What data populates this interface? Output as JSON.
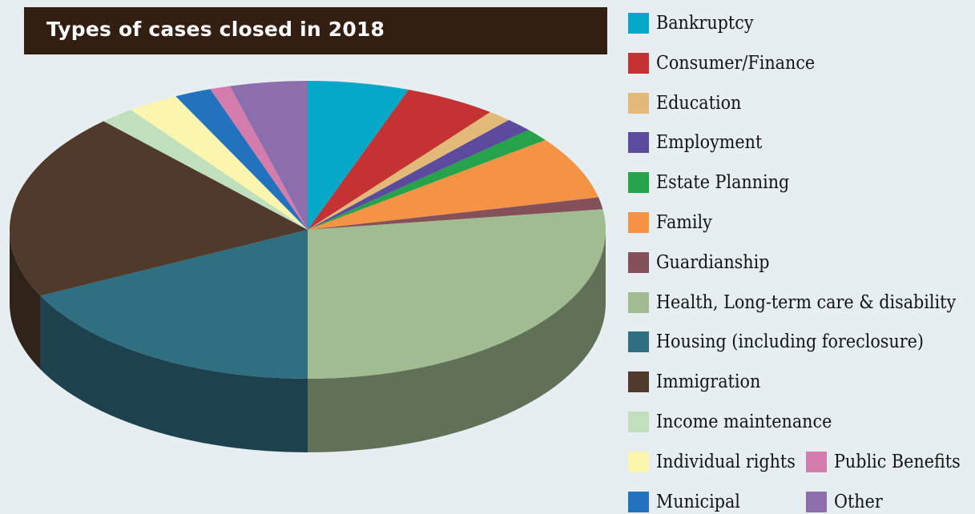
{
  "chart_data": {
    "type": "pie",
    "title": "Types of cases closed in 2018",
    "slices": [
      {
        "label": "Bankruptcy",
        "value": 5.5,
        "color": "#05a9c7"
      },
      {
        "label": "Consumer/Finance",
        "value": 5.0,
        "color": "#c43234"
      },
      {
        "label": "Education",
        "value": 1.3,
        "color": "#e2b978"
      },
      {
        "label": "Employment",
        "value": 1.5,
        "color": "#5c4a9f"
      },
      {
        "label": "Estate Planning",
        "value": 1.4,
        "color": "#26a34a"
      },
      {
        "label": "Family",
        "value": 6.8,
        "color": "#f59345"
      },
      {
        "label": "Guardianship",
        "value": 1.3,
        "color": "#84505a"
      },
      {
        "label": "Health, Long-term care & disability",
        "value": 27.2,
        "color": "#a2bc92"
      },
      {
        "label": "Housing (including foreclosure)",
        "value": 17.7,
        "color": "#306e81"
      },
      {
        "label": "Immigration",
        "value": 20.3,
        "color": "#4f3a2c"
      },
      {
        "label": "Income maintenance",
        "value": 1.9,
        "color": "#c0dfbc"
      },
      {
        "label": "Individual rights",
        "value": 2.8,
        "color": "#fcf5ad"
      },
      {
        "label": "Municipal",
        "value": 2.0,
        "color": "#2272be"
      },
      {
        "label": "Public Benefits",
        "value": 1.1,
        "color": "#d47cac"
      },
      {
        "label": "Other",
        "value": 4.2,
        "color": "#8b6eab"
      }
    ],
    "legend_position": "right"
  }
}
